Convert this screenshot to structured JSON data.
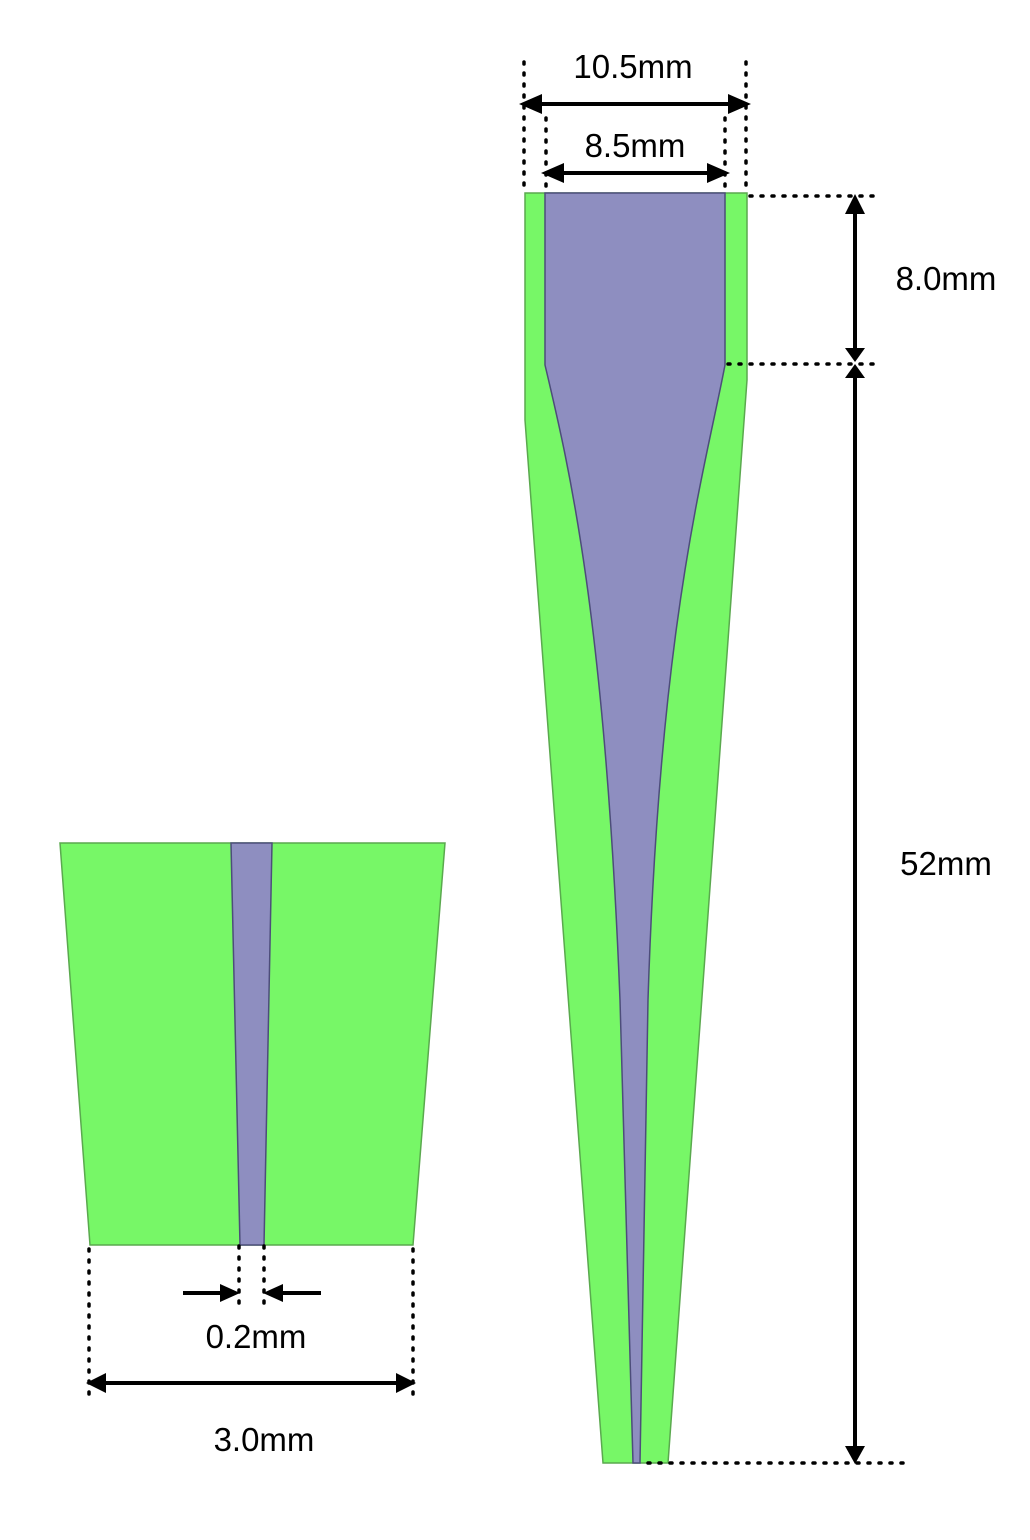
{
  "colors": {
    "wall": "#77f767",
    "wall_stroke": "#5aa94e",
    "lumen": "#8e8ec0",
    "lumen_stroke": "#4d4d7a",
    "annotation": "#000000"
  },
  "labels": {
    "outer_top_width": "10.5mm",
    "inner_top_width": "8.5mm",
    "top_section_length": "8.0mm",
    "taper_length": "52mm",
    "tip_inner_width": "0.2mm",
    "tip_outer_width": "3.0mm"
  }
}
